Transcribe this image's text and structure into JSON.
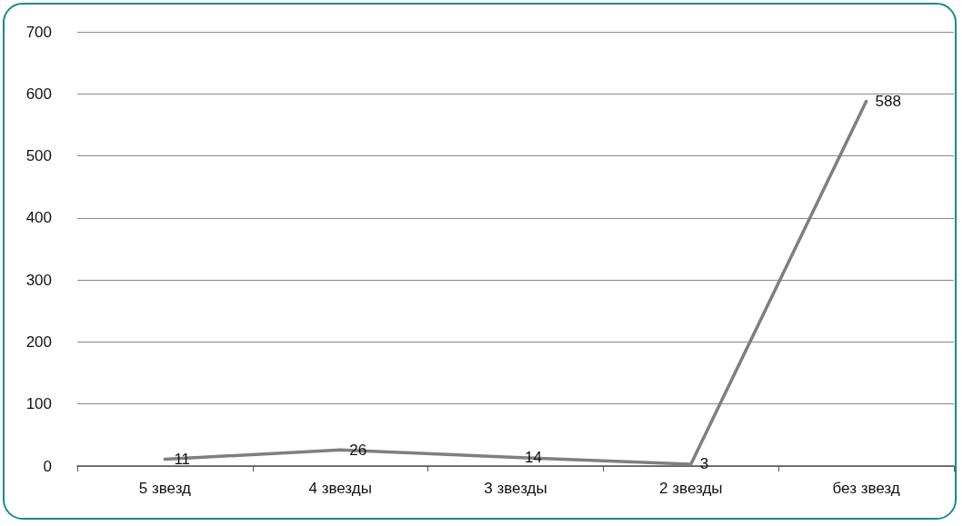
{
  "chart_data": {
    "type": "line",
    "categories": [
      "5 звезд",
      "4 звезды",
      "3 звезды",
      "2 звезды",
      "без звезд"
    ],
    "series": [
      {
        "color": "#7f7f7f",
        "values": [
          11,
          26,
          14,
          3,
          588
        ]
      }
    ],
    "ylim": [
      0,
      700
    ],
    "yticks": [
      0,
      100,
      200,
      300,
      400,
      500,
      600,
      700
    ],
    "grid": "y",
    "data_labels": true,
    "marker": "none",
    "line_style": "solid"
  }
}
